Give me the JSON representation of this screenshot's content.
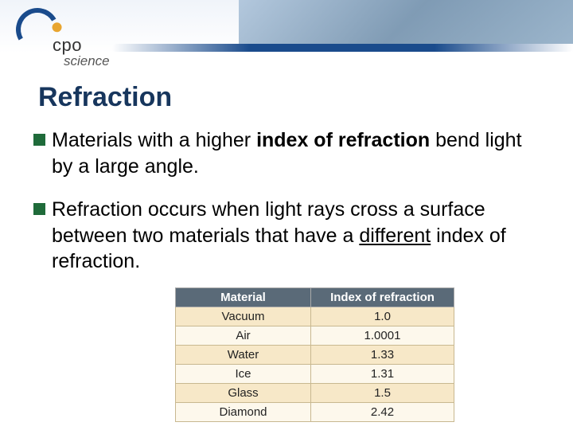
{
  "logo": {
    "brand_top": "cpo",
    "brand_bottom": "science"
  },
  "title": "Refraction",
  "bullets": [
    {
      "pre": "Materials with a higher ",
      "bold": "index of refraction",
      "post": " bend light by a large angle."
    },
    {
      "pre": "Refraction occurs when light rays cross a surface between two materials that have a ",
      "underline": "different",
      "post": " index of refraction."
    }
  ],
  "table": {
    "header_bg": "#5a6a78",
    "header_fg": "#ffffff",
    "row_odd_bg": "#f7e8c8",
    "row_even_bg": "#fdf8ec",
    "border_color": "#c8b890",
    "columns": [
      "Material",
      "Index of refraction"
    ],
    "rows": [
      [
        "Vacuum",
        "1.0"
      ],
      [
        "Air",
        "1.0001"
      ],
      [
        "Water",
        "1.33"
      ],
      [
        "Ice",
        "1.31"
      ],
      [
        "Glass",
        "1.5"
      ],
      [
        "Diamond",
        "2.42"
      ]
    ]
  }
}
